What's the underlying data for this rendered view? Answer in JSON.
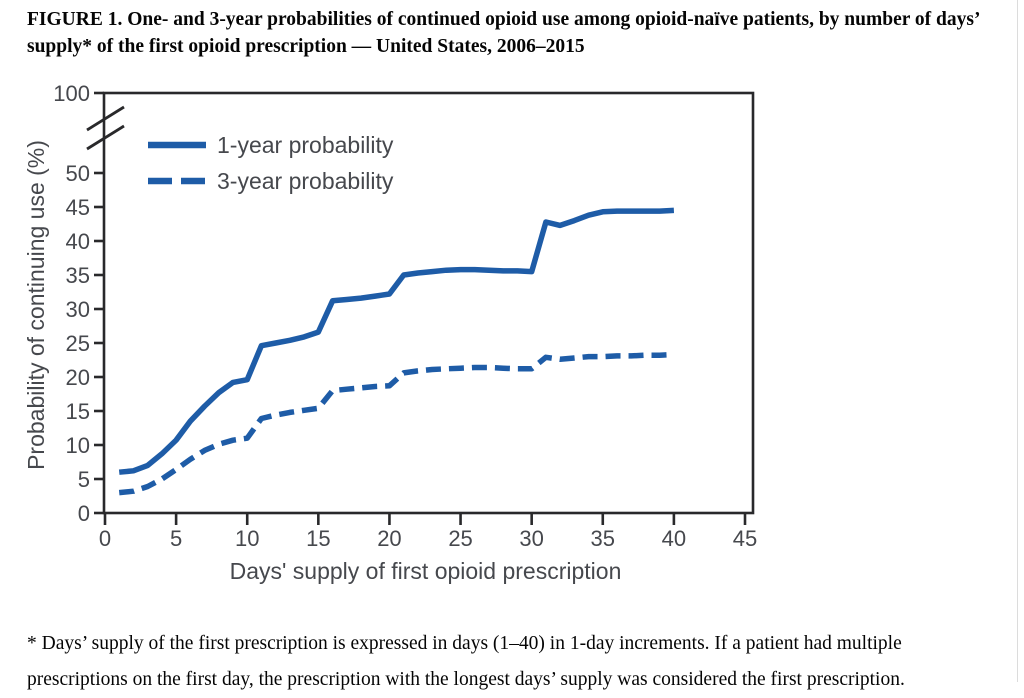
{
  "figure": {
    "title_lines": [
      "FIGURE 1. One- and 3-year probabilities of continued opioid use among opioid-naïve patients, by number of days’",
      "supply* of the first opioid prescription — United States, 2006–2015"
    ],
    "footnote_lines": [
      "* Days’ supply of the first prescription is expressed in days (1–40) in 1-day increments. If a patient had multiple",
      "prescriptions on the first day, the prescription with the longest days’ supply was considered the first prescription."
    ]
  },
  "colors": {
    "line_blue": "#1e5ca7",
    "axis": "#29292b",
    "chart_text": "#46484d",
    "title_text": "#050505"
  },
  "chart_data": {
    "type": "line",
    "title": "",
    "xlabel": "Days' supply of first opioid prescription",
    "ylabel": "Probability of continuing use (%)",
    "xlim": [
      0,
      45
    ],
    "ylim_displayed": [
      0,
      50
    ],
    "axis_break": true,
    "y_top_tick_label": "100",
    "x_ticks": [
      0,
      5,
      10,
      15,
      20,
      25,
      30,
      35,
      40,
      45
    ],
    "y_ticks": [
      0,
      5,
      10,
      15,
      20,
      25,
      30,
      35,
      40,
      45,
      50
    ],
    "grid": false,
    "legend_position": "top-left-inside",
    "x": [
      1,
      2,
      3,
      4,
      5,
      6,
      7,
      8,
      9,
      10,
      11,
      12,
      13,
      14,
      15,
      16,
      17,
      18,
      19,
      20,
      21,
      22,
      23,
      24,
      25,
      26,
      27,
      28,
      29,
      30,
      31,
      32,
      33,
      34,
      35,
      36,
      37,
      38,
      39,
      40
    ],
    "series": [
      {
        "name": "1-year probability",
        "dash": "solid",
        "values": [
          6.0,
          6.2,
          7.0,
          8.7,
          10.7,
          13.5,
          15.7,
          17.7,
          19.2,
          19.6,
          24.6,
          25.0,
          25.4,
          25.9,
          26.6,
          31.2,
          31.4,
          31.6,
          31.9,
          32.2,
          35.0,
          35.3,
          35.5,
          35.7,
          35.8,
          35.8,
          35.7,
          35.6,
          35.6,
          35.5,
          42.8,
          42.3,
          43.0,
          43.8,
          44.3,
          44.4,
          44.4,
          44.4,
          44.4,
          44.5
        ]
      },
      {
        "name": "3-year probability",
        "dash": "dashed",
        "values": [
          3.0,
          3.2,
          3.9,
          5.0,
          6.4,
          7.9,
          9.2,
          10.1,
          10.7,
          11.0,
          13.9,
          14.4,
          14.8,
          15.1,
          15.4,
          18.0,
          18.2,
          18.4,
          18.6,
          18.7,
          20.6,
          20.9,
          21.1,
          21.2,
          21.3,
          21.4,
          21.4,
          21.3,
          21.2,
          21.2,
          22.9,
          22.6,
          22.8,
          23.0,
          23.0,
          23.1,
          23.1,
          23.2,
          23.2,
          23.3
        ]
      }
    ]
  }
}
